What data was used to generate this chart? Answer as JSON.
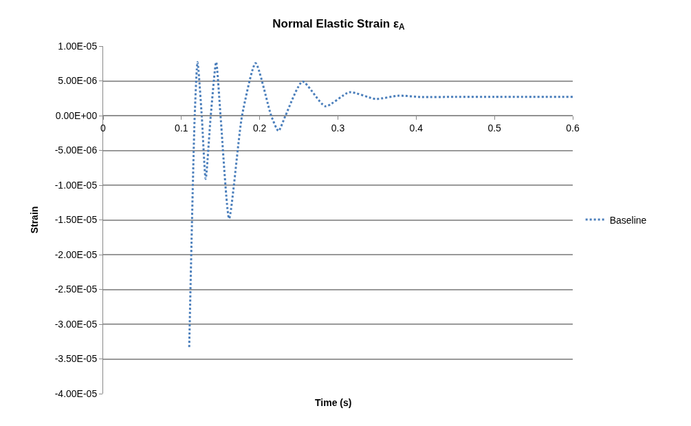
{
  "chart_data": {
    "type": "line",
    "title": "Normal Elastic Strain ε$_{A}$",
    "xlabel": "Time (s)",
    "ylabel": "Strain",
    "x": [
      0.11,
      0.117,
      0.1206,
      0.126,
      0.131,
      0.1375,
      0.1444,
      0.15,
      0.161,
      0.1775,
      0.1948,
      0.2147,
      0.224,
      0.233,
      0.2548,
      0.284,
      0.3148,
      0.348,
      0.378,
      0.407,
      0.45,
      0.5,
      0.6
    ],
    "series": [
      {
        "name": "Baseline",
        "color": "#4a7ebb",
        "values": [
          -3.33e-05,
          0,
          7.7e-06,
          0,
          -9.1e-06,
          0,
          7.7e-06,
          0,
          -1.48e-05,
          0,
          7.55e-06,
          0,
          -2.2e-06,
          0,
          4.9e-06,
          1.35e-06,
          3.37e-06,
          2.4e-06,
          2.87e-06,
          2.67e-06,
          2.7e-06,
          2.7e-06,
          2.7e-06
        ]
      }
    ],
    "xlim": [
      0,
      0.6
    ],
    "xticks": [
      0,
      0.1,
      0.2,
      0.3,
      0.4,
      0.5,
      0.6
    ],
    "ylim": [
      -4e-05,
      1e-05
    ],
    "yticks": [
      {
        "value": 1e-05,
        "label": "1.00E-05"
      },
      {
        "value": 5e-06,
        "label": "5.00E-06"
      },
      {
        "value": 0,
        "label": "0.00E+00"
      },
      {
        "value": -5e-06,
        "label": "-5.00E-06"
      },
      {
        "value": -1e-05,
        "label": "-1.00E-05"
      },
      {
        "value": -1.5e-05,
        "label": "-1.50E-05"
      },
      {
        "value": -2e-05,
        "label": "-2.00E-05"
      },
      {
        "value": -2.5e-05,
        "label": "-2.50E-05"
      },
      {
        "value": -3e-05,
        "label": "-3.00E-05"
      },
      {
        "value": -3.5e-05,
        "label": "-3.50E-05"
      },
      {
        "value": -4e-05,
        "label": "-4.00E-05"
      }
    ],
    "grid": "y",
    "legend": "right",
    "marker": "none",
    "line_style": "dotted"
  }
}
